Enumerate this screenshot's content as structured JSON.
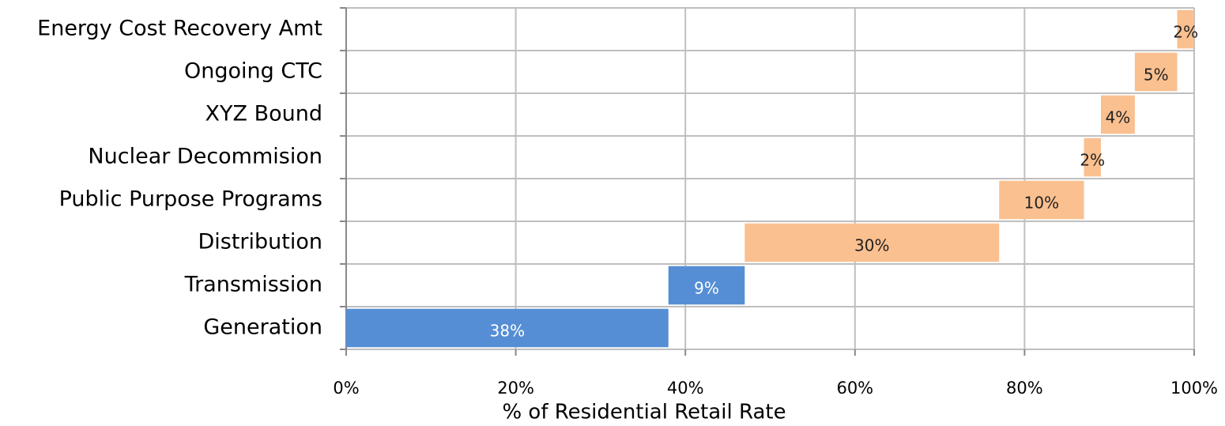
{
  "chart_data": {
    "type": "waterfall",
    "x_label": "% of Residential Retail Rate",
    "categories": [
      "Generation",
      "Transmission",
      "Distribution",
      "Public Purpose Programs",
      "Nuclear Decommision",
      "XYZ Bound",
      "Ongoing CTC",
      "Energy Cost Recovery Amt"
    ],
    "values": [
      38,
      9,
      30,
      10,
      2,
      4,
      5,
      2
    ],
    "value_labels": [
      "38%",
      "9%",
      "30%",
      "10%",
      "2%",
      "4%",
      "5%",
      "2%"
    ],
    "colors": [
      "#558ed5",
      "#558ed5",
      "#fac090",
      "#fac090",
      "#fac090",
      "#fac090",
      "#fac090",
      "#fac090"
    ],
    "xlim": [
      0,
      100
    ],
    "xticks": [
      {
        "value": 0,
        "label": "0%"
      },
      {
        "value": 20,
        "label": "20%"
      },
      {
        "value": 40,
        "label": "40%"
      },
      {
        "value": 60,
        "label": "60%"
      },
      {
        "value": 80,
        "label": "80%"
      },
      {
        "value": 100,
        "label": "100%"
      }
    ],
    "grid": true
  }
}
